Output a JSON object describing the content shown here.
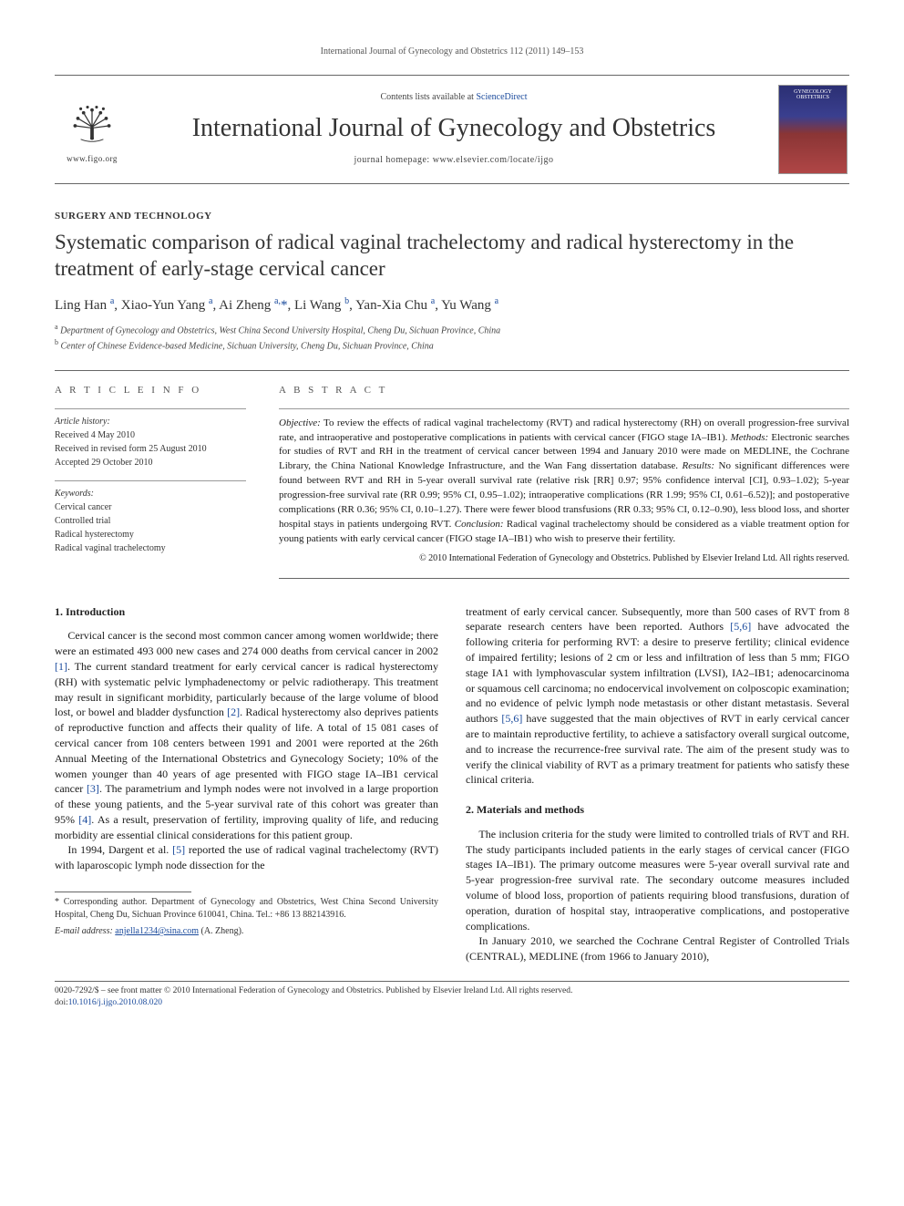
{
  "running_header": {
    "journal_abbrev": "International Journal of Gynecology and Obstetrics",
    "volume_issue_pages": "112 (2011) 149–153"
  },
  "masthead": {
    "contents_line_prefix": "Contents lists available at ",
    "contents_line_link": "ScienceDirect",
    "journal_name": "International Journal of Gynecology and Obstetrics",
    "homepage_label": "journal homepage: ",
    "homepage_url": "www.elsevier.com/locate/ijgo",
    "figo_url": "www.figo.org",
    "cover_title_line1": "GYNECOLOGY",
    "cover_title_line2": "OBSTETRICS"
  },
  "article": {
    "section_tag": "SURGERY AND TECHNOLOGY",
    "title": "Systematic comparison of radical vaginal trachelectomy and radical hysterectomy in the treatment of early-stage cervical cancer",
    "authors_html": "Ling Han <sup>a</sup>, Xiao-Yun Yang <sup>a</sup>, Ai Zheng <sup>a,</sup><span class='star'>*</span>, Li Wang <sup>b</sup>, Yan-Xia Chu <sup>a</sup>, Yu Wang <sup>a</sup>",
    "affil_a": "Department of Gynecology and Obstetrics, West China Second University Hospital, Cheng Du, Sichuan Province, China",
    "affil_b": "Center of Chinese Evidence-based Medicine, Sichuan University, Cheng Du, Sichuan Province, China"
  },
  "article_info": {
    "heading": "A R T I C L E   I N F O",
    "history_label": "Article history:",
    "received": "Received 4 May 2010",
    "revised": "Received in revised form 25 August 2010",
    "accepted": "Accepted 29 October 2010",
    "keywords_label": "Keywords:",
    "keywords": [
      "Cervical cancer",
      "Controlled trial",
      "Radical hysterectomy",
      "Radical vaginal trachelectomy"
    ]
  },
  "abstract": {
    "heading": "A B S T R A C T",
    "labels": {
      "objective": "Objective:",
      "methods": "Methods:",
      "results": "Results:",
      "conclusion": "Conclusion:"
    },
    "objective": " To review the effects of radical vaginal trachelectomy (RVT) and radical hysterectomy (RH) on overall progression-free survival rate, and intraoperative and postoperative complications in patients with cervical cancer (FIGO stage IA–IB1). ",
    "methods": " Electronic searches for studies of RVT and RH in the treatment of cervical cancer between 1994 and January 2010 were made on MEDLINE, the Cochrane Library, the China National Knowledge Infrastructure, and the Wan Fang dissertation database. ",
    "results": " No significant differences were found between RVT and RH in 5-year overall survival rate (relative risk [RR] 0.97; 95% confidence interval [CI], 0.93–1.02); 5-year progression-free survival rate (RR 0.99; 95% CI, 0.95–1.02); intraoperative complications (RR 1.99; 95% CI, 0.61–6.52)]; and postoperative complications (RR 0.36; 95% CI, 0.10–1.27). There were fewer blood transfusions (RR 0.33; 95% CI, 0.12–0.90), less blood loss, and shorter hospital stays in patients undergoing RVT. ",
    "conclusion": " Radical vaginal trachelectomy should be considered as a viable treatment option for young patients with early cervical cancer (FIGO stage IA–IB1) who wish to preserve their fertility.",
    "copyright": "© 2010 International Federation of Gynecology and Obstetrics. Published by Elsevier Ireland Ltd. All rights reserved."
  },
  "body": {
    "intro_heading": "1. Introduction",
    "intro_p1": "Cervical cancer is the second most common cancer among women worldwide; there were an estimated 493 000 new cases and 274 000 deaths from cervical cancer in 2002 [1]. The current standard treatment for early cervical cancer is radical hysterectomy (RH) with systematic pelvic lymphadenectomy or pelvic radiotherapy. This treatment may result in significant morbidity, particularly because of the large volume of blood lost, or bowel and bladder dysfunction [2]. Radical hysterectomy also deprives patients of reproductive function and affects their quality of life. A total of 15 081 cases of cervical cancer from 108 centers between 1991 and 2001 were reported at the 26th Annual Meeting of the International Obstetrics and Gynecology Society; 10% of the women younger than 40 years of age presented with FIGO stage IA–IB1 cervical cancer [3]. The parametrium and lymph nodes were not involved in a large proportion of these young patients, and the 5-year survival rate of this cohort was greater than 95% [4]. As a result, preservation of fertility, improving quality of life, and reducing morbidity are essential clinical considerations for this patient group.",
    "intro_p2": "In 1994, Dargent et al. [5] reported the use of radical vaginal trachelectomy (RVT) with laparoscopic lymph node dissection for the",
    "intro_p3_col2": "treatment of early cervical cancer. Subsequently, more than 500 cases of RVT from 8 separate research centers have been reported. Authors [5,6] have advocated the following criteria for performing RVT: a desire to preserve fertility; clinical evidence of impaired fertility; lesions of 2 cm or less and infiltration of less than 5 mm; FIGO stage IA1 with lymphovascular system infiltration (LVSI), IA2–IB1; adenocarcinoma or squamous cell carcinoma; no endocervical involvement on colposcopic examination; and no evidence of pelvic lymph node metastasis or other distant metastasis. Several authors [5,6] have suggested that the main objectives of RVT in early cervical cancer are to maintain reproductive fertility, to achieve a satisfactory overall surgical outcome, and to increase the recurrence-free survival rate. The aim of the present study was to verify the clinical viability of RVT as a primary treatment for patients who satisfy these clinical criteria.",
    "methods_heading": "2. Materials and methods",
    "methods_p1": "The inclusion criteria for the study were limited to controlled trials of RVT and RH. The study participants included patients in the early stages of cervical cancer (FIGO stages IA–IB1). The primary outcome measures were 5-year overall survival rate and 5-year progression-free survival rate. The secondary outcome measures included volume of blood loss, proportion of patients requiring blood transfusions, duration of operation, duration of hospital stay, intraoperative complications, and postoperative complications.",
    "methods_p2": "In January 2010, we searched the Cochrane Central Register of Controlled Trials (CENTRAL), MEDLINE (from 1966 to January 2010),"
  },
  "footnotes": {
    "corr_label": "* Corresponding author. ",
    "corr_text": "Department of Gynecology and Obstetrics, West China Second University Hospital, Cheng Du, Sichuan Province 610041, China. Tel.: +86 13 882143916.",
    "email_label": "E-mail address: ",
    "email": "anjella1234@sina.com",
    "email_suffix": " (A. Zheng)."
  },
  "bottom": {
    "issn_line": "0020-7292/$ – see front matter © 2010 International Federation of Gynecology and Obstetrics. Published by Elsevier Ireland Ltd. All rights reserved.",
    "doi_label": "doi:",
    "doi": "10.1016/j.ijgo.2010.08.020"
  },
  "colors": {
    "link": "#1a4a9c",
    "text": "#1a1a1a",
    "rule": "#666666"
  }
}
